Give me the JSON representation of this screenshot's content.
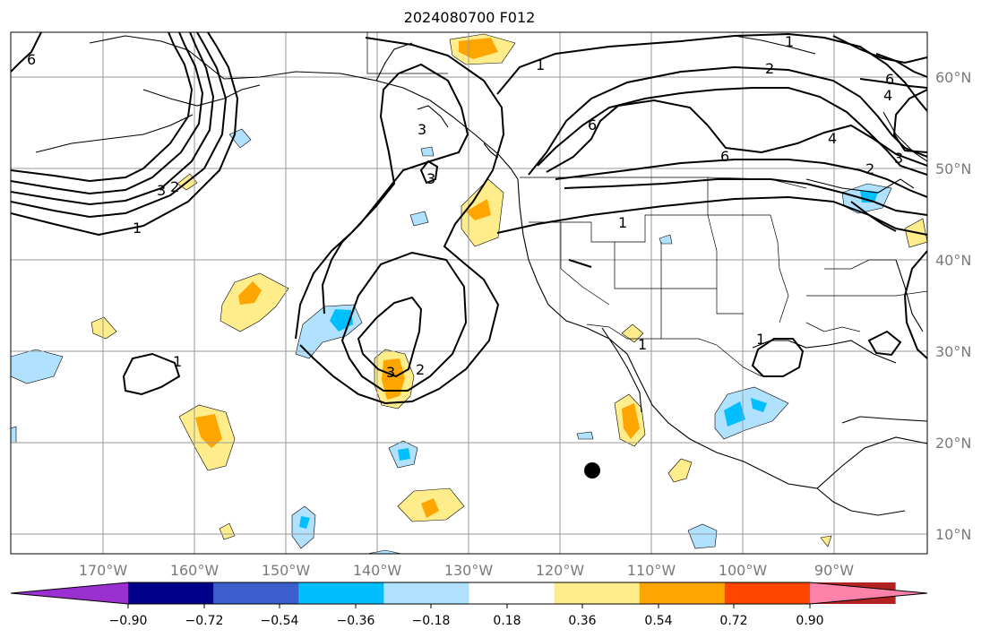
{
  "title": "2024080700 F012",
  "lon_labels": [
    "170°W",
    "160°W",
    "150°W",
    "140°W",
    "130°W",
    "120°W",
    "110°W",
    "100°W",
    "90°W"
  ],
  "lat_labels": [
    "60°N",
    "50°N",
    "40°N",
    "30°N",
    "20°N",
    "10°N"
  ],
  "contour_labels": [
    "6",
    "3",
    "2",
    "1",
    "3",
    "3",
    "3",
    "2",
    "1",
    "1",
    "6",
    "6",
    "2",
    "1",
    "4",
    "6",
    "3",
    "2",
    "4",
    "1",
    "1",
    "1"
  ],
  "colorbar": {
    "tick_labels": [
      "−0.90",
      "−0.72",
      "−0.54",
      "−0.36",
      "−0.18",
      "0.18",
      "0.36",
      "0.54",
      "0.72",
      "0.90"
    ],
    "colors": [
      "#9b30d0",
      "#00008b",
      "#3a5fcd",
      "#00bfff",
      "#b0e2ff",
      "#ffffff",
      "#ffec8b",
      "#ffa500",
      "#ff4500",
      "#b22222",
      "#ff82ab"
    ]
  },
  "marker": "storm-center-dot"
}
